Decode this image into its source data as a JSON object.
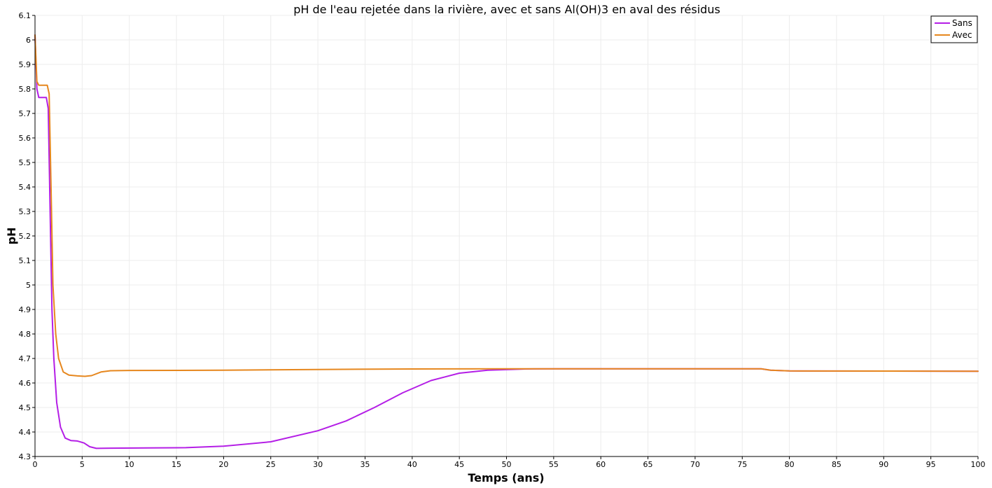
{
  "chart_data": {
    "type": "line",
    "title": "pH de l'eau rejetée dans la rivière, avec et sans Al(OH)3 en aval des résidus",
    "xlabel": "Temps (ans)",
    "ylabel": "pH",
    "xlim": [
      0,
      100
    ],
    "ylim": [
      4.3,
      6.1
    ],
    "x_ticks": [
      "0",
      "5",
      "10",
      "15",
      "20",
      "25",
      "30",
      "35",
      "40",
      "45",
      "50",
      "55",
      "60",
      "65",
      "70",
      "75",
      "80",
      "85",
      "90",
      "95",
      "100"
    ],
    "y_ticks": [
      "4.3",
      "4.4",
      "4.5",
      "4.6",
      "4.7",
      "4.8",
      "4.9",
      "5",
      "5.1",
      "5.2",
      "5.3",
      "5.4",
      "5.5",
      "5.6",
      "5.7",
      "5.8",
      "5.9",
      "6",
      "6.1"
    ],
    "grid": true,
    "legend_position": "top-right",
    "series": [
      {
        "name": "Sans",
        "color": "#b41ee6",
        "points": [
          [
            0,
            6.02
          ],
          [
            0.2,
            5.8
          ],
          [
            0.4,
            5.765
          ],
          [
            1.2,
            5.765
          ],
          [
            1.4,
            5.72
          ],
          [
            1.6,
            5.3
          ],
          [
            1.8,
            4.9
          ],
          [
            2.0,
            4.7
          ],
          [
            2.3,
            4.52
          ],
          [
            2.7,
            4.42
          ],
          [
            3.2,
            4.375
          ],
          [
            3.8,
            4.365
          ],
          [
            4.5,
            4.363
          ],
          [
            5.2,
            4.355
          ],
          [
            5.8,
            4.34
          ],
          [
            6.5,
            4.333
          ],
          [
            8,
            4.334
          ],
          [
            12,
            4.335
          ],
          [
            16,
            4.336
          ],
          [
            20,
            4.342
          ],
          [
            25,
            4.36
          ],
          [
            30,
            4.405
          ],
          [
            33,
            4.445
          ],
          [
            36,
            4.5
          ],
          [
            39,
            4.56
          ],
          [
            42,
            4.61
          ],
          [
            45,
            4.64
          ],
          [
            48,
            4.652
          ],
          [
            52,
            4.657
          ],
          [
            56,
            4.658
          ],
          [
            70,
            4.658
          ],
          [
            77,
            4.658
          ],
          [
            78,
            4.652
          ],
          [
            80,
            4.649
          ],
          [
            100,
            4.648
          ]
        ]
      },
      {
        "name": "Avec",
        "color": "#e6871e",
        "points": [
          [
            0,
            6.02
          ],
          [
            0.2,
            5.83
          ],
          [
            0.4,
            5.815
          ],
          [
            1.3,
            5.815
          ],
          [
            1.5,
            5.78
          ],
          [
            1.7,
            5.4
          ],
          [
            1.9,
            5.0
          ],
          [
            2.2,
            4.8
          ],
          [
            2.5,
            4.7
          ],
          [
            3.0,
            4.645
          ],
          [
            3.6,
            4.632
          ],
          [
            4.5,
            4.629
          ],
          [
            5.3,
            4.627
          ],
          [
            6.0,
            4.63
          ],
          [
            7.0,
            4.645
          ],
          [
            8.0,
            4.65
          ],
          [
            10,
            4.651
          ],
          [
            20,
            4.652
          ],
          [
            30,
            4.655
          ],
          [
            40,
            4.657
          ],
          [
            50,
            4.658
          ],
          [
            77,
            4.658
          ],
          [
            78,
            4.652
          ],
          [
            80,
            4.649
          ],
          [
            100,
            4.648
          ]
        ]
      }
    ]
  }
}
